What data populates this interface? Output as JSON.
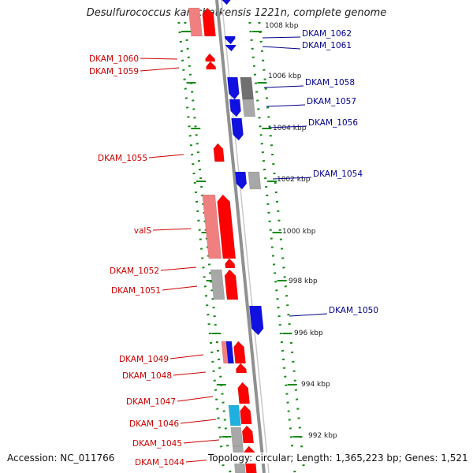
{
  "title": "Desulfurococcus kamchatkensis 1221n, complete genome",
  "footer": {
    "accession": "Accession: NC_011766",
    "summary": "Topology: circular; Length: 1,365,223 bp; Genes: 1,521"
  },
  "colors": {
    "forward": "#ff0000",
    "forward_light": "#f08080",
    "reverse": "#1010e0",
    "gray": "#a8a8a8",
    "dark_gray": "#707070",
    "cyan": "#20b0e0",
    "backbone": "#909090",
    "ticks": "#1a8a1a",
    "label_forward": "#cc0000",
    "label_reverse": "#00008b"
  },
  "scale_labels": [
    "1008 kbp",
    "1006 kbp",
    "1004 kbp",
    "1002 kbp",
    "1000 kbp",
    "998 kbp",
    "996 kbp",
    "994 kbp",
    "992 kbp"
  ],
  "gene_labels_forward": [
    "DKAM_1060",
    "DKAM_1059",
    "DKAM_1055",
    "valS",
    "DKAM_1052",
    "DKAM_1051",
    "DKAM_1049",
    "DKAM_1048",
    "DKAM_1047",
    "DKAM_1046",
    "DKAM_1045",
    "DKAM_1044"
  ],
  "gene_labels_reverse": [
    "DKAM_1062",
    "DKAM_1061",
    "DKAM_1058",
    "DKAM_1057",
    "DKAM_1056",
    "DKAM_1054",
    "DKAM_1050"
  ]
}
